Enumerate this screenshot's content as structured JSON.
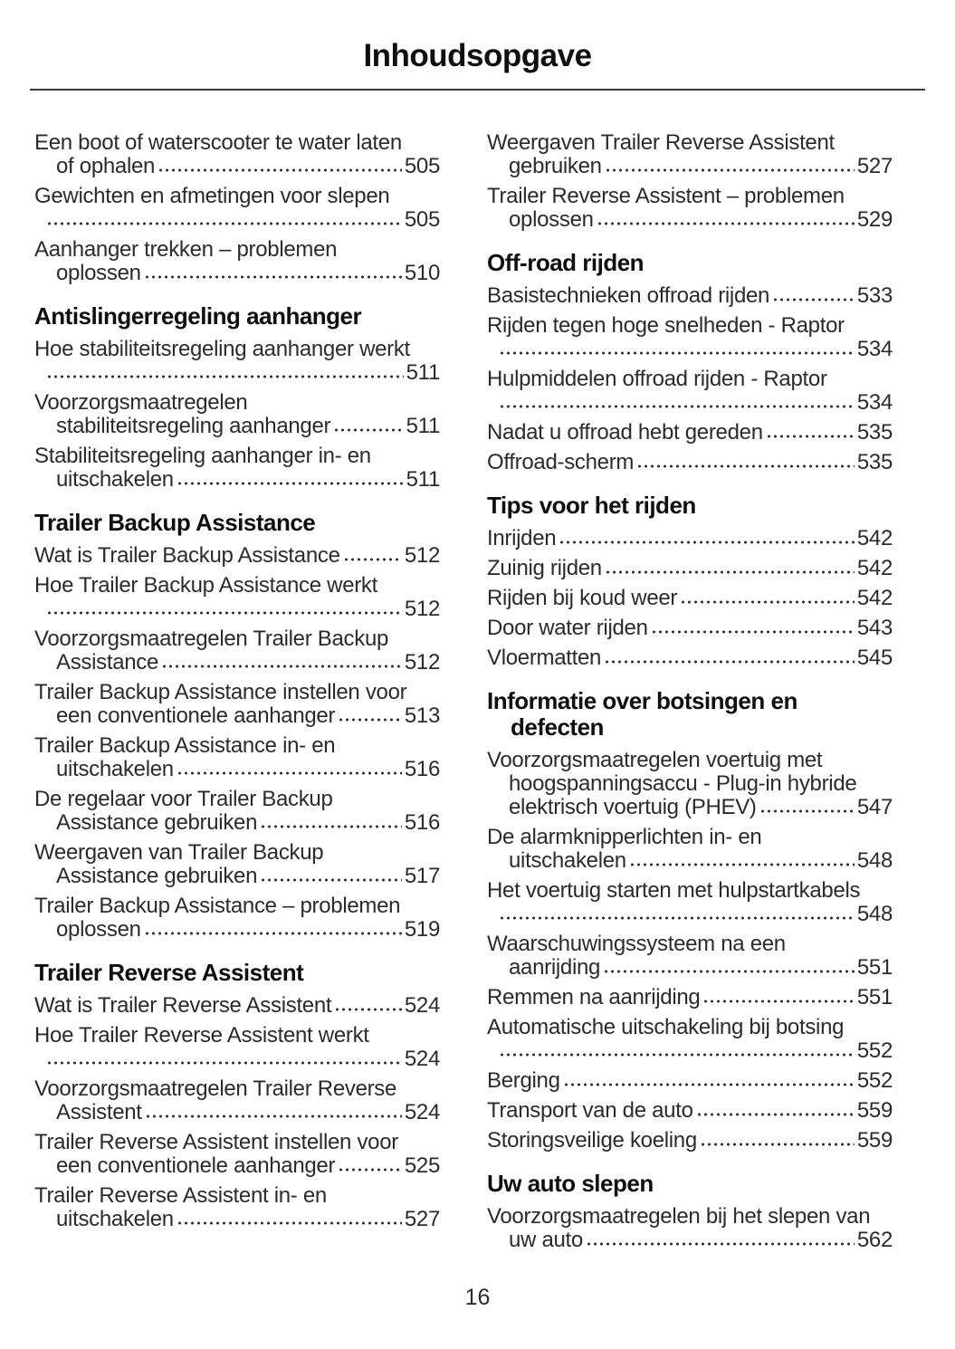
{
  "page": {
    "title": "Inhoudsopgave",
    "footer_page_number": "16"
  },
  "colors": {
    "text": "#2b2b2b",
    "heading": "#0f0f0f",
    "divider": "#3a3a3a",
    "background": "#ffffff"
  },
  "columns": {
    "left": [
      {
        "type": "entry",
        "lines": [
          "Een boot of waterscooter te water laten",
          "of ophalen"
        ],
        "page": "505"
      },
      {
        "type": "entry",
        "lines": [
          "Gewichten en afmetingen voor slepen",
          ""
        ],
        "page": "505"
      },
      {
        "type": "entry",
        "lines": [
          "Aanhanger trekken – problemen",
          "oplossen"
        ],
        "page": "510"
      },
      {
        "type": "heading",
        "lines": [
          "Antislingerregeling aanhanger"
        ]
      },
      {
        "type": "entry",
        "lines": [
          "Hoe stabiliteitsregeling aanhanger werkt",
          ""
        ],
        "page": "511"
      },
      {
        "type": "entry",
        "lines": [
          "Voorzorgsmaatregelen",
          "stabiliteitsregeling aanhanger"
        ],
        "page": "511"
      },
      {
        "type": "entry",
        "lines": [
          "Stabiliteitsregeling aanhanger in- en",
          "uitschakelen"
        ],
        "page": "511"
      },
      {
        "type": "heading",
        "lines": [
          "Trailer Backup Assistance"
        ]
      },
      {
        "type": "entry",
        "lines": [
          "Wat is Trailer Backup Assistance"
        ],
        "page": "512"
      },
      {
        "type": "entry",
        "lines": [
          "Hoe Trailer Backup Assistance werkt",
          ""
        ],
        "page": "512"
      },
      {
        "type": "entry",
        "lines": [
          "Voorzorgsmaatregelen Trailer Backup",
          "Assistance"
        ],
        "page": "512"
      },
      {
        "type": "entry",
        "lines": [
          "Trailer Backup Assistance instellen voor",
          "een conventionele aanhanger"
        ],
        "page": "513"
      },
      {
        "type": "entry",
        "lines": [
          "Trailer Backup Assistance in- en",
          "uitschakelen"
        ],
        "page": "516"
      },
      {
        "type": "entry",
        "lines": [
          "De regelaar voor Trailer Backup",
          "Assistance gebruiken"
        ],
        "page": "516"
      },
      {
        "type": "entry",
        "lines": [
          "Weergaven van Trailer Backup",
          "Assistance gebruiken"
        ],
        "page": "517"
      },
      {
        "type": "entry",
        "lines": [
          "Trailer Backup Assistance – problemen",
          "oplossen"
        ],
        "page": "519"
      },
      {
        "type": "heading",
        "lines": [
          "Trailer Reverse Assistent"
        ]
      },
      {
        "type": "entry",
        "lines": [
          "Wat is Trailer Reverse Assistent"
        ],
        "page": "524"
      },
      {
        "type": "entry",
        "lines": [
          "Hoe Trailer Reverse Assistent werkt",
          ""
        ],
        "page": "524"
      },
      {
        "type": "entry",
        "lines": [
          "Voorzorgsmaatregelen Trailer Reverse",
          "Assistent"
        ],
        "page": "524"
      },
      {
        "type": "entry",
        "lines": [
          "Trailer Reverse Assistent instellen voor",
          "een conventionele aanhanger"
        ],
        "page": "525"
      },
      {
        "type": "entry",
        "lines": [
          "Trailer Reverse Assistent in- en",
          "uitschakelen"
        ],
        "page": "527"
      }
    ],
    "right": [
      {
        "type": "entry",
        "lines": [
          "Weergaven Trailer Reverse Assistent",
          "gebruiken"
        ],
        "page": "527"
      },
      {
        "type": "entry",
        "lines": [
          "Trailer Reverse Assistent – problemen",
          "oplossen"
        ],
        "page": "529"
      },
      {
        "type": "heading",
        "lines": [
          "Off-road rijden"
        ]
      },
      {
        "type": "entry",
        "lines": [
          "Basistechnieken offroad rijden"
        ],
        "page": "533"
      },
      {
        "type": "entry",
        "lines": [
          "Rijden tegen hoge snelheden - Raptor",
          ""
        ],
        "page": "534"
      },
      {
        "type": "entry",
        "lines": [
          "Hulpmiddelen offroad rijden - Raptor",
          ""
        ],
        "page": "534"
      },
      {
        "type": "entry",
        "lines": [
          "Nadat u offroad hebt gereden"
        ],
        "page": "535"
      },
      {
        "type": "entry",
        "lines": [
          "Offroad-scherm"
        ],
        "page": "535"
      },
      {
        "type": "heading",
        "lines": [
          "Tips voor het rijden"
        ]
      },
      {
        "type": "entry",
        "lines": [
          "Inrijden"
        ],
        "page": "542"
      },
      {
        "type": "entry",
        "lines": [
          "Zuinig rijden"
        ],
        "page": "542"
      },
      {
        "type": "entry",
        "lines": [
          "Rijden bij koud weer"
        ],
        "page": "542"
      },
      {
        "type": "entry",
        "lines": [
          "Door water rijden"
        ],
        "page": "543"
      },
      {
        "type": "entry",
        "lines": [
          "Vloermatten"
        ],
        "page": "545"
      },
      {
        "type": "heading",
        "lines": [
          "Informatie over botsingen en",
          "defecten"
        ]
      },
      {
        "type": "entry",
        "lines": [
          "Voorzorgsmaatregelen voertuig met",
          "hoogspanningsaccu - Plug-in hybride",
          "elektrisch voertuig (PHEV)"
        ],
        "page": "547"
      },
      {
        "type": "entry",
        "lines": [
          "De alarmknipperlichten in- en",
          "uitschakelen"
        ],
        "page": "548"
      },
      {
        "type": "entry",
        "lines": [
          "Het voertuig starten met hulpstartkabels",
          ""
        ],
        "page": "548"
      },
      {
        "type": "entry",
        "lines": [
          "Waarschuwingssysteem na een",
          "aanrijding"
        ],
        "page": "551"
      },
      {
        "type": "entry",
        "lines": [
          "Remmen na aanrijding"
        ],
        "page": "551"
      },
      {
        "type": "entry",
        "lines": [
          "Automatische uitschakeling bij botsing",
          ""
        ],
        "page": "552"
      },
      {
        "type": "entry",
        "lines": [
          "Berging"
        ],
        "page": "552"
      },
      {
        "type": "entry",
        "lines": [
          "Transport van de auto"
        ],
        "page": "559"
      },
      {
        "type": "entry",
        "lines": [
          "Storingsveilige koeling"
        ],
        "page": "559"
      },
      {
        "type": "heading",
        "lines": [
          "Uw auto slepen"
        ]
      },
      {
        "type": "entry",
        "lines": [
          "Voorzorgsmaatregelen bij het slepen van",
          "uw auto"
        ],
        "page": "562"
      }
    ]
  }
}
